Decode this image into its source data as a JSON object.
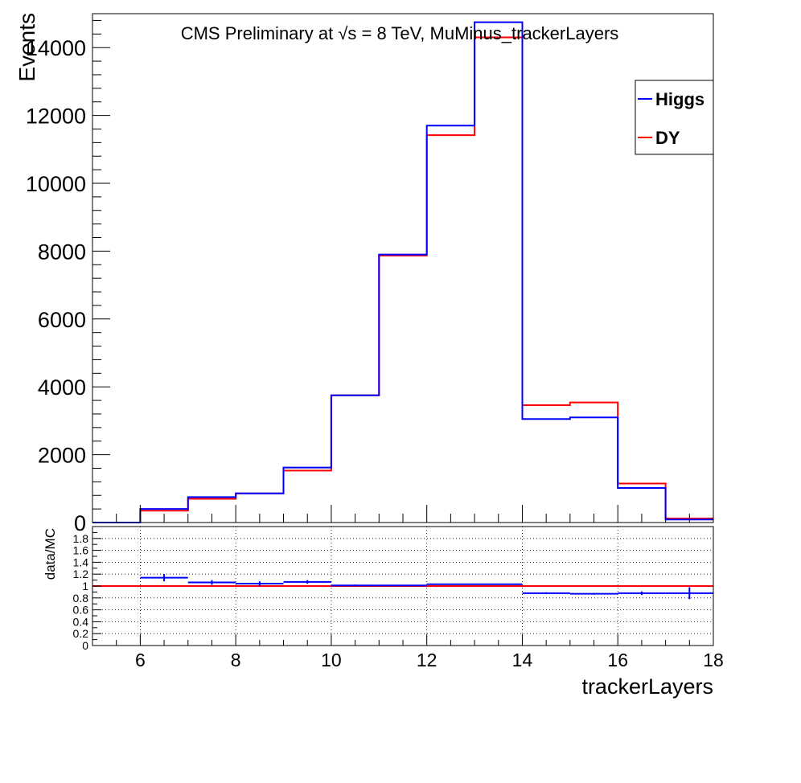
{
  "chart_data": [
    {
      "type": "histogram",
      "title": "CMS Preliminary at √s = 8 TeV, MuMinus_trackerLayers",
      "xlabel": "trackerLayers",
      "ylabel": "Events",
      "xlim": [
        5,
        18
      ],
      "ylim": [
        0,
        15000
      ],
      "bin_edges": [
        5,
        6,
        7,
        8,
        9,
        10,
        11,
        12,
        13,
        14,
        15,
        16,
        17,
        18
      ],
      "x_ticks": [
        6,
        8,
        10,
        12,
        14,
        16,
        18
      ],
      "y_ticks": [
        0,
        2000,
        4000,
        6000,
        8000,
        10000,
        12000,
        14000
      ],
      "series": [
        {
          "name": "Higgs",
          "color": "#0000ff",
          "values": [
            0,
            400,
            750,
            860,
            1620,
            3750,
            7900,
            11700,
            14750,
            3050,
            3100,
            1020,
            90
          ]
        },
        {
          "name": "DY",
          "color": "#ff0000",
          "values": [
            0,
            350,
            700,
            860,
            1530,
            3750,
            7870,
            11420,
            14300,
            3460,
            3540,
            1150,
            120
          ]
        }
      ],
      "legend": {
        "placement": "top-right",
        "entries": [
          "Higgs",
          "DY"
        ]
      }
    },
    {
      "type": "ratio",
      "ylabel": "data/MC",
      "xlabel": "trackerLayers",
      "xlim": [
        5,
        18
      ],
      "ylim": [
        0,
        2
      ],
      "grid": true,
      "x_ticks": [
        6,
        8,
        10,
        12,
        14,
        16,
        18
      ],
      "y_ticks": [
        0,
        0.2,
        0.4,
        0.6,
        0.8,
        1,
        1.2,
        1.4,
        1.6,
        1.8
      ],
      "reference_line": {
        "y": 1,
        "color": "#ff0000"
      },
      "ratio_series": {
        "color": "#0000ff",
        "points": [
          {
            "x": 6.5,
            "xlo": 6,
            "xhi": 7,
            "y": 1.14,
            "err": 0.06
          },
          {
            "x": 7.5,
            "xlo": 7,
            "xhi": 8,
            "y": 1.06,
            "err": 0.04
          },
          {
            "x": 8.5,
            "xlo": 8,
            "xhi": 9,
            "y": 1.04,
            "err": 0.04
          },
          {
            "x": 9.5,
            "xlo": 9,
            "xhi": 10,
            "y": 1.07,
            "err": 0.03
          },
          {
            "x": 10.5,
            "xlo": 10,
            "xhi": 11,
            "y": 1.01,
            "err": 0.015
          },
          {
            "x": 11.5,
            "xlo": 11,
            "xhi": 12,
            "y": 1.01,
            "err": 0.01
          },
          {
            "x": 12.5,
            "xlo": 12,
            "xhi": 13,
            "y": 1.03,
            "err": 0.01
          },
          {
            "x": 13.5,
            "xlo": 13,
            "xhi": 14,
            "y": 1.03,
            "err": 0.01
          },
          {
            "x": 14.5,
            "xlo": 14,
            "xhi": 15,
            "y": 0.88,
            "err": 0.015
          },
          {
            "x": 15.5,
            "xlo": 15,
            "xhi": 16,
            "y": 0.87,
            "err": 0.015
          },
          {
            "x": 16.5,
            "xlo": 16,
            "xhi": 17,
            "y": 0.88,
            "err": 0.03
          },
          {
            "x": 17.5,
            "xlo": 17,
            "xhi": 18,
            "y": 0.88,
            "err": 0.1
          }
        ]
      }
    }
  ]
}
